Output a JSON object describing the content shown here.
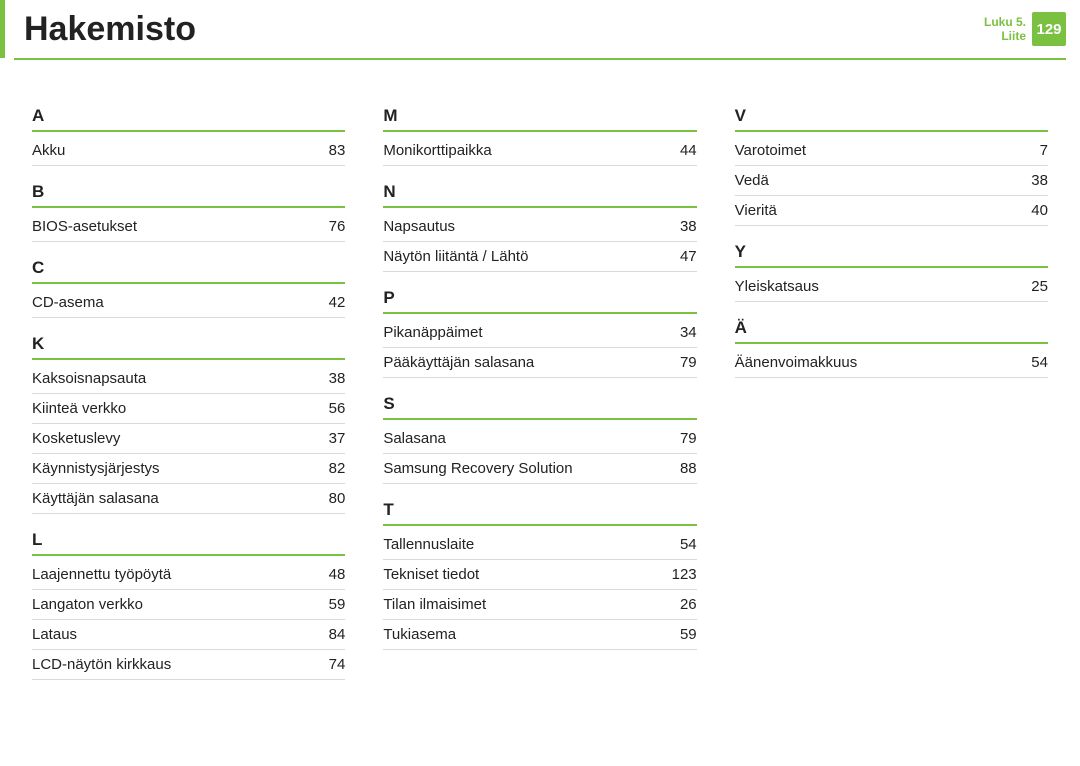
{
  "header": {
    "title": "Hakemisto",
    "chapter_line1": "Luku 5.",
    "chapter_line2": "Liite",
    "page_number": "129"
  },
  "colors": {
    "accent": "#7ac142",
    "text": "#222222",
    "divider": "#d9d9d9",
    "background": "#ffffff"
  },
  "typography": {
    "title_fontsize": 34,
    "letter_fontsize": 17,
    "entry_fontsize": 15,
    "chapter_fontsize": 12
  },
  "columns": [
    {
      "sections": [
        {
          "letter": "A",
          "entries": [
            {
              "term": "Akku",
              "page": "83"
            }
          ]
        },
        {
          "letter": "B",
          "entries": [
            {
              "term": "BIOS-asetukset",
              "page": "76"
            }
          ]
        },
        {
          "letter": "C",
          "entries": [
            {
              "term": "CD-asema",
              "page": "42"
            }
          ]
        },
        {
          "letter": "K",
          "entries": [
            {
              "term": "Kaksoisnapsauta",
              "page": "38"
            },
            {
              "term": "Kiinteä verkko",
              "page": "56"
            },
            {
              "term": "Kosketuslevy",
              "page": "37"
            },
            {
              "term": "Käynnistysjärjestys",
              "page": "82"
            },
            {
              "term": "Käyttäjän salasana",
              "page": "80"
            }
          ]
        },
        {
          "letter": "L",
          "entries": [
            {
              "term": "Laajennettu työpöytä",
              "page": "48"
            },
            {
              "term": "Langaton verkko",
              "page": "59"
            },
            {
              "term": "Lataus",
              "page": "84"
            },
            {
              "term": "LCD-näytön kirkkaus",
              "page": "74"
            }
          ]
        }
      ]
    },
    {
      "sections": [
        {
          "letter": "M",
          "entries": [
            {
              "term": "Monikorttipaikka",
              "page": "44"
            }
          ]
        },
        {
          "letter": "N",
          "entries": [
            {
              "term": "Napsautus",
              "page": "38"
            },
            {
              "term": "Näytön liitäntä / Lähtö",
              "page": "47"
            }
          ]
        },
        {
          "letter": "P",
          "entries": [
            {
              "term": "Pikanäppäimet",
              "page": "34"
            },
            {
              "term": "Pääkäyttäjän salasana",
              "page": "79"
            }
          ]
        },
        {
          "letter": "S",
          "entries": [
            {
              "term": "Salasana",
              "page": "79"
            },
            {
              "term": "Samsung Recovery Solution",
              "page": "88"
            }
          ]
        },
        {
          "letter": "T",
          "entries": [
            {
              "term": "Tallennuslaite",
              "page": "54"
            },
            {
              "term": "Tekniset tiedot",
              "page": "123"
            },
            {
              "term": "Tilan ilmaisimet",
              "page": "26"
            },
            {
              "term": "Tukiasema",
              "page": "59"
            }
          ]
        }
      ]
    },
    {
      "sections": [
        {
          "letter": "V",
          "entries": [
            {
              "term": "Varotoimet",
              "page": "7"
            },
            {
              "term": "Vedä",
              "page": "38"
            },
            {
              "term": "Vieritä",
              "page": "40"
            }
          ]
        },
        {
          "letter": "Y",
          "entries": [
            {
              "term": "Yleiskatsaus",
              "page": "25"
            }
          ]
        },
        {
          "letter": "Ä",
          "entries": [
            {
              "term": "Äänenvoimakkuus",
              "page": "54"
            }
          ]
        }
      ]
    }
  ]
}
